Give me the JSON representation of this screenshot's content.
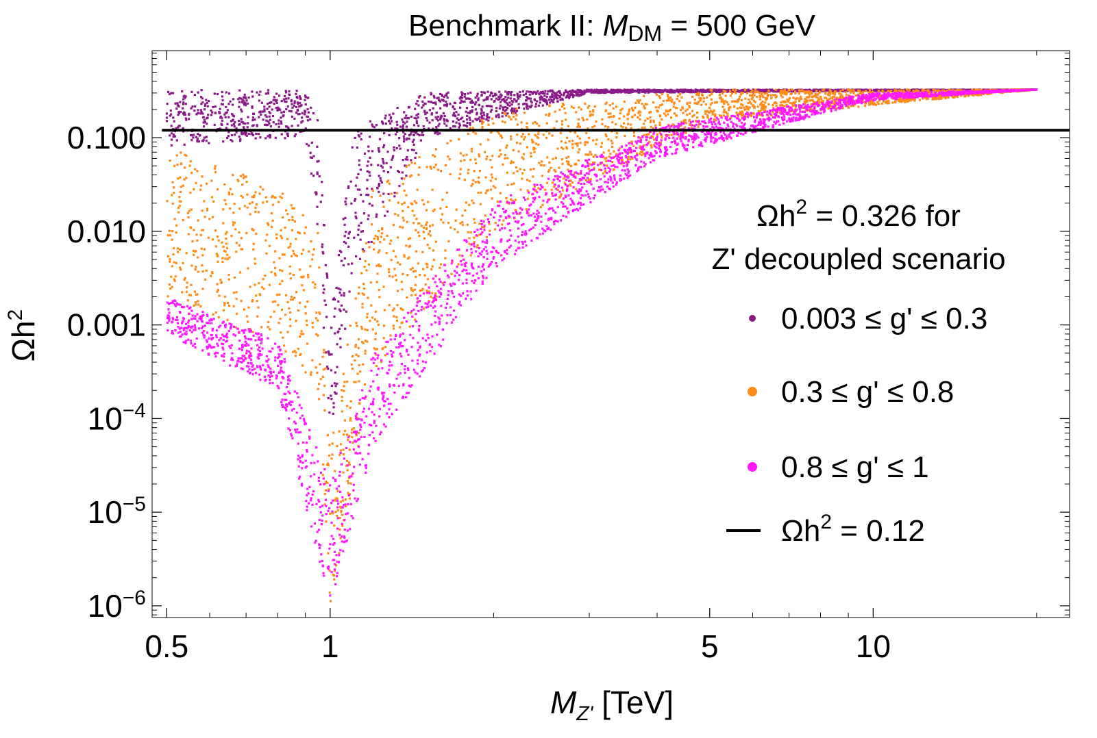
{
  "chart_data": {
    "type": "scatter",
    "title": {
      "prefix": "Benchmark II: ",
      "var": "M",
      "sub": "DM",
      "suffix": " = 500 GeV"
    },
    "xlabel": {
      "var": "M",
      "sub": "Z'",
      "unit": " [TeV]"
    },
    "ylabel": {
      "base": "Ωh",
      "sup": "2"
    },
    "x_scale": "log",
    "y_scale": "log",
    "xlim": [
      0.47,
      23
    ],
    "ylim": [
      7.5e-07,
      0.85
    ],
    "x_ticks": [
      {
        "value": 0.5,
        "label": "0.5"
      },
      {
        "value": 1,
        "label": "1"
      },
      {
        "value": 5,
        "label": "5"
      },
      {
        "value": 10,
        "label": "10"
      }
    ],
    "y_ticks": [
      {
        "value": 0.1,
        "label": "0.100"
      },
      {
        "value": 0.01,
        "label": "0.010"
      },
      {
        "value": 0.001,
        "label": "0.001"
      },
      {
        "value": 0.0001,
        "base": "10",
        "exp": "−4"
      },
      {
        "value": 1e-05,
        "base": "10",
        "exp": "−5"
      },
      {
        "value": 1e-06,
        "base": "10",
        "exp": "−6"
      }
    ],
    "grid": false,
    "reference_line": {
      "y": 0.12,
      "color": "#000000",
      "label_base": "Ωh",
      "label_sup": "2",
      "label_rest": " = 0.12"
    },
    "annotation": {
      "line1_base": "Ωh",
      "line1_sup": "2",
      "line1_rest": " = 0.326 for",
      "line2": "Z' decoupled scenario"
    },
    "decoupled_value": 0.326,
    "resonance_x": 1.0,
    "series": [
      {
        "name": "0.003 ≤ g' ≤ 0.3",
        "color": "#8B1A89",
        "g_range": [
          0.003,
          0.3
        ],
        "envelope": [
          {
            "x": 0.5,
            "y_min": 0.08,
            "y_max": 0.326
          },
          {
            "x": 0.9,
            "y_min": 0.1,
            "y_max": 0.32
          },
          {
            "x": 0.95,
            "y_min": 0.01,
            "y_max": 0.2
          },
          {
            "x": 1.0,
            "y_min": 6e-05,
            "y_max": 0.001
          },
          {
            "x": 1.1,
            "y_min": 0.003,
            "y_max": 0.12
          },
          {
            "x": 1.5,
            "y_min": 0.1,
            "y_max": 0.3
          },
          {
            "x": 3,
            "y_min": 0.3,
            "y_max": 0.326
          },
          {
            "x": 20,
            "y_min": 0.326,
            "y_max": 0.326
          }
        ]
      },
      {
        "name": "0.3 ≤ g' ≤ 0.8",
        "color": "#FF8C1A",
        "g_range": [
          0.3,
          0.8
        ],
        "envelope": [
          {
            "x": 0.5,
            "y_min": 0.002,
            "y_max": 0.08
          },
          {
            "x": 0.8,
            "y_min": 0.0006,
            "y_max": 0.03
          },
          {
            "x": 0.95,
            "y_min": 0.0002,
            "y_max": 0.01
          },
          {
            "x": 1.0,
            "y_min": 1e-06,
            "y_max": 5e-05
          },
          {
            "x": 1.2,
            "y_min": 0.0003,
            "y_max": 0.03
          },
          {
            "x": 2,
            "y_min": 0.01,
            "y_max": 0.2
          },
          {
            "x": 5,
            "y_min": 0.15,
            "y_max": 0.326
          },
          {
            "x": 20,
            "y_min": 0.326,
            "y_max": 0.326
          }
        ]
      },
      {
        "name": "0.8 ≤ g' ≤ 1",
        "color": "#FF19FF",
        "g_range": [
          0.8,
          1
        ],
        "envelope": [
          {
            "x": 0.5,
            "y_min": 0.0008,
            "y_max": 0.002
          },
          {
            "x": 0.8,
            "y_min": 0.0002,
            "y_max": 0.0007
          },
          {
            "x": 1.0,
            "y_min": 1e-06,
            "y_max": 2e-05
          },
          {
            "x": 1.2,
            "y_min": 5e-05,
            "y_max": 0.0005
          },
          {
            "x": 2,
            "y_min": 0.004,
            "y_max": 0.02
          },
          {
            "x": 4,
            "y_min": 0.06,
            "y_max": 0.13
          },
          {
            "x": 10,
            "y_min": 0.25,
            "y_max": 0.3
          },
          {
            "x": 20,
            "y_min": 0.326,
            "y_max": 0.326
          }
        ]
      }
    ]
  }
}
